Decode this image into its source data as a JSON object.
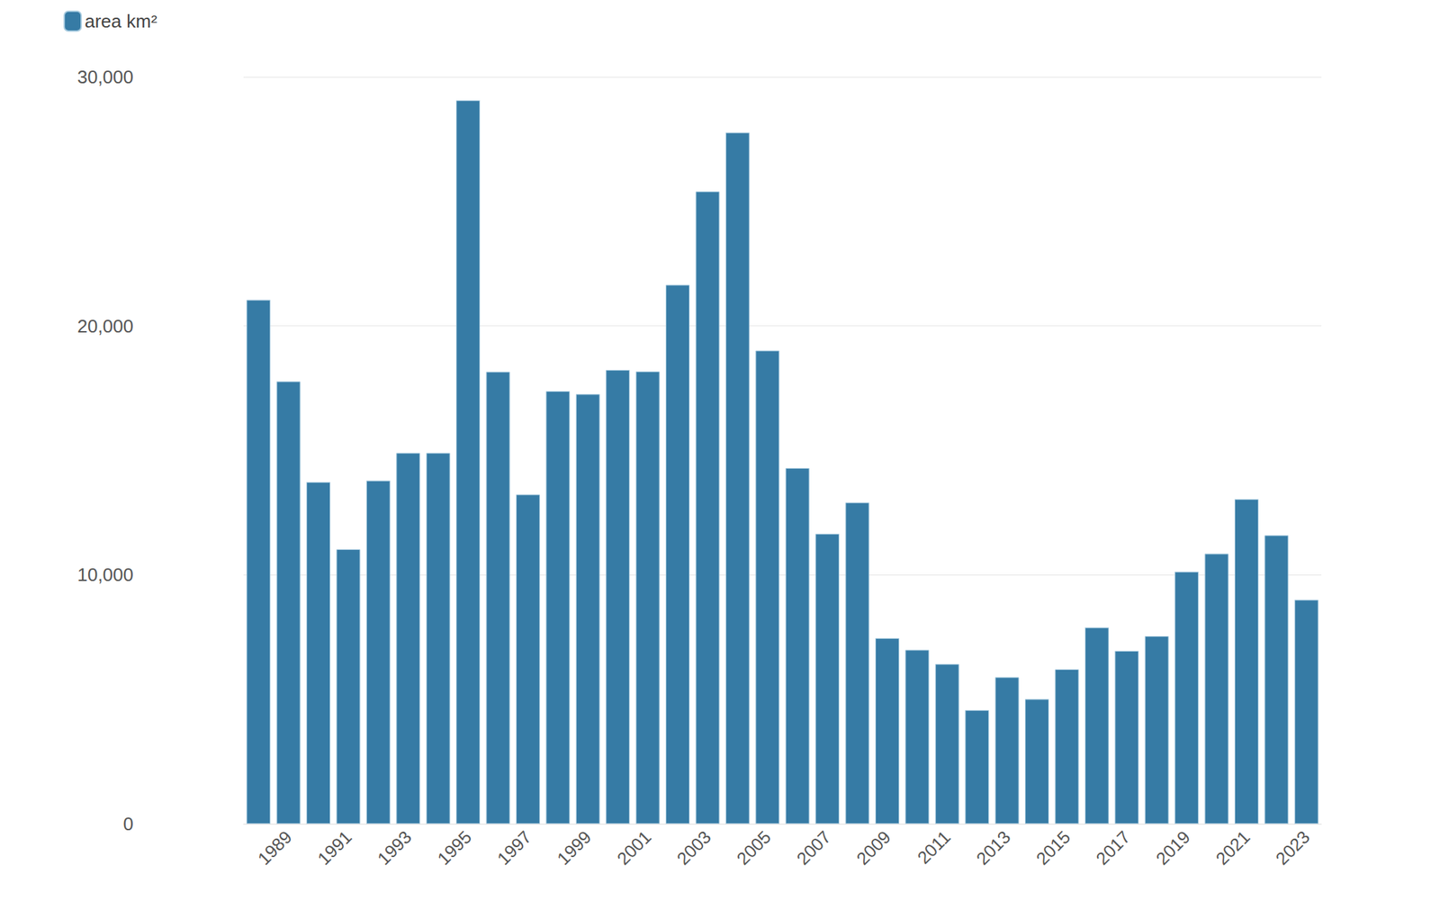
{
  "chart_data": {
    "type": "bar",
    "categories": [
      null,
      "1989",
      null,
      "1991",
      null,
      "1993",
      null,
      "1995",
      null,
      "1997",
      null,
      "1999",
      null,
      "2001",
      null,
      "2003",
      null,
      "2005",
      null,
      "2007",
      null,
      "2009",
      null,
      "2011",
      null,
      "2013",
      null,
      "2015",
      null,
      "2017",
      null,
      "2019",
      null,
      "2021",
      null,
      "2023"
    ],
    "series": [
      {
        "name": "area km²",
        "color": "#2f77a2",
        "values": [
          21050,
          17770,
          13730,
          11030,
          13790,
          14900,
          14900,
          29060,
          18160,
          13230,
          17380,
          17260,
          18230,
          18170,
          21650,
          25400,
          27770,
          19010,
          14290,
          11650,
          12910,
          7460,
          6990,
          6420,
          4570,
          5890,
          5010,
          6210,
          7890,
          6950,
          7540,
          10130,
          10850,
          13040,
          11590,
          9000
        ]
      }
    ],
    "ylim": [
      0,
      30000
    ],
    "yticks": [
      0,
      {
        "value": 10000,
        "label": "10,000"
      },
      {
        "value": 20000,
        "label": "20,000"
      },
      {
        "value": 30000,
        "label": "30,000"
      }
    ],
    "grid": true,
    "legend": "top-left"
  }
}
